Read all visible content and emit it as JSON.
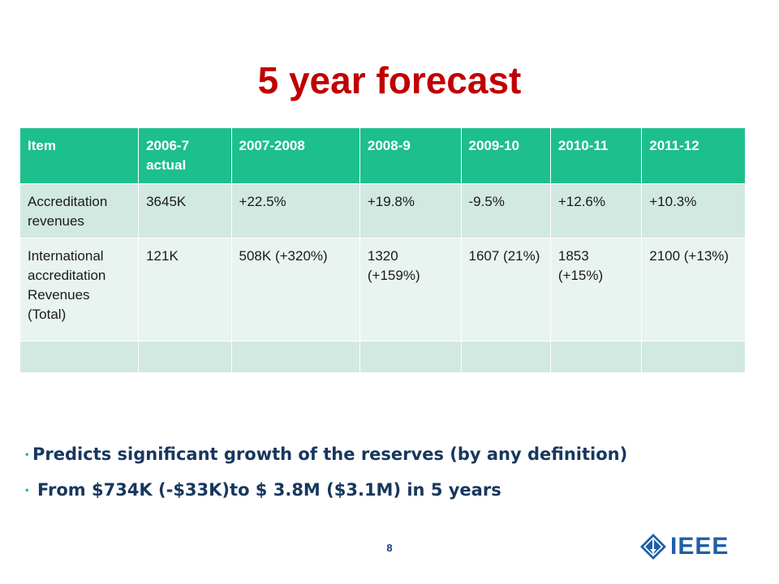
{
  "slide": {
    "title": "5 year forecast",
    "page_number": "8"
  },
  "table": {
    "headers": [
      "Item",
      "2006-7 actual",
      "2007-2008",
      "2008-9",
      "2009-10",
      "2010-11",
      "2011-12"
    ],
    "rows": [
      [
        "Accreditation revenues",
        "3645K",
        "+22.5%",
        "+19.8%",
        "-9.5%",
        "+12.6%",
        "+10.3%"
      ],
      [
        "International accreditation Revenues (Total)",
        "121K",
        "508K (+320%)",
        "1320 (+159%)",
        "1607 (21%)",
        "1853 (+15%)",
        "2100 (+13%)"
      ],
      [
        "",
        "",
        "",
        "",
        "",
        "",
        ""
      ]
    ]
  },
  "bullets": [
    "Predicts significant growth of the reserves (by any definition)",
    "From $734K (-$33K)to $ 3.8M ($3.1M) in 5 years"
  ],
  "logo": {
    "text": "IEEE",
    "icon": "ieee-diamond-icon"
  },
  "colors": {
    "title": "#c00000",
    "header_bg": "#1dbf8d",
    "row_dark": "#d2e9e1",
    "row_light": "#e9f3f0",
    "bullet_text": "#17375e",
    "logo_blue": "#1f5fa8"
  }
}
